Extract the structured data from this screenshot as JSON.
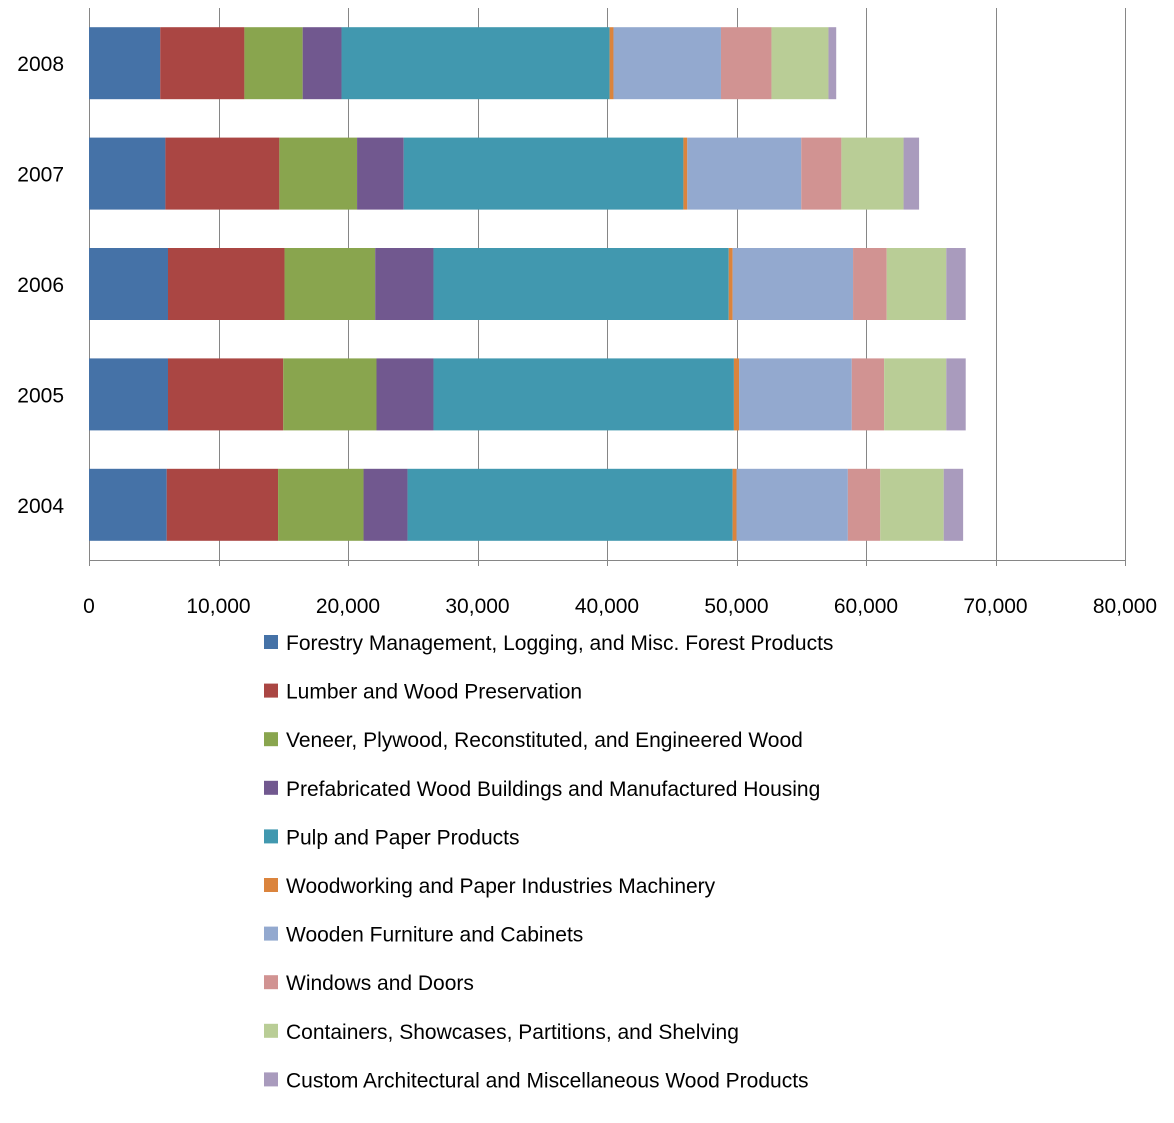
{
  "chart_data": {
    "type": "bar",
    "orientation": "horizontal",
    "stacked": true,
    "categories": [
      "2004",
      "2005",
      "2006",
      "2007",
      "2008"
    ],
    "xlim": [
      0,
      80000
    ],
    "xticks": [
      0,
      10000,
      20000,
      30000,
      40000,
      50000,
      60000,
      70000,
      80000
    ],
    "xtick_labels": [
      "0",
      "10,000",
      "20,000",
      "30,000",
      "40,000",
      "50,000",
      "60,000",
      "70,000",
      "80,000"
    ],
    "grid": true,
    "legend_position": "bottom",
    "series": [
      {
        "name": "Forestry Management, Logging, and Misc. Forest Products",
        "color": "#4572A7",
        "values": [
          6000,
          6100,
          6100,
          5900,
          5500
        ]
      },
      {
        "name": "Lumber and Wood Preservation",
        "color": "#AA4643",
        "values": [
          8600,
          8900,
          9000,
          8800,
          6500
        ]
      },
      {
        "name": "Veneer, Plywood, Reconstituted, and Engineered Wood",
        "color": "#89A54E",
        "values": [
          6600,
          7200,
          7000,
          6000,
          4500
        ]
      },
      {
        "name": "Prefabricated Wood Buildings and Manufactured Housing",
        "color": "#71588F",
        "values": [
          3400,
          4400,
          4500,
          3600,
          3000
        ]
      },
      {
        "name": "Pulp and Paper Products",
        "color": "#4198AF",
        "values": [
          25100,
          23200,
          22800,
          21600,
          20700
        ]
      },
      {
        "name": "Woodworking and Paper Industries Machinery",
        "color": "#DB843D",
        "values": [
          300,
          400,
          300,
          300,
          300
        ]
      },
      {
        "name": "Wooden Furniture and Cabinets",
        "color": "#93A9CF",
        "values": [
          8600,
          8700,
          9300,
          8800,
          8300
        ]
      },
      {
        "name": "Windows and Doors",
        "color": "#D19392",
        "values": [
          2500,
          2500,
          2600,
          3100,
          3900
        ]
      },
      {
        "name": "Containers, Showcases, Partitions, and Shelving",
        "color": "#B9CD96",
        "values": [
          4900,
          4800,
          4600,
          4800,
          4400
        ]
      },
      {
        "name": "Custom Architectural and Miscellaneous Wood Products",
        "color": "#A99BBD",
        "values": [
          1500,
          1500,
          1500,
          1200,
          600
        ]
      }
    ]
  }
}
